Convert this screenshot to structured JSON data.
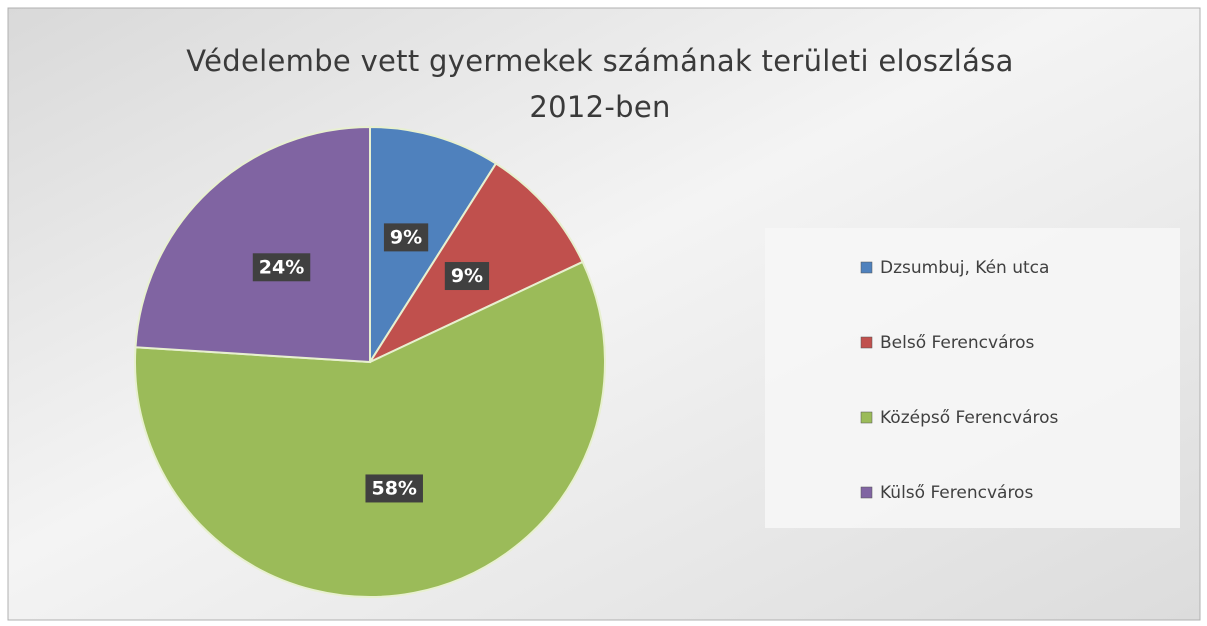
{
  "chart_data": {
    "type": "pie",
    "title": "Védelembe vett gyermekek számának területi eloszlása 2012-ben",
    "categories": [
      "Dzsumbuj, Kén utca",
      "Belső Ferencváros",
      "Középső Ferencváros",
      "Külső Ferencváros"
    ],
    "values": [
      9,
      9,
      58,
      24
    ],
    "value_labels": [
      "9%",
      "9%",
      "58%",
      "24%"
    ],
    "colors": [
      "#4f81bd",
      "#c0504d",
      "#9bbb59",
      "#8064a2"
    ],
    "legend": "right"
  }
}
